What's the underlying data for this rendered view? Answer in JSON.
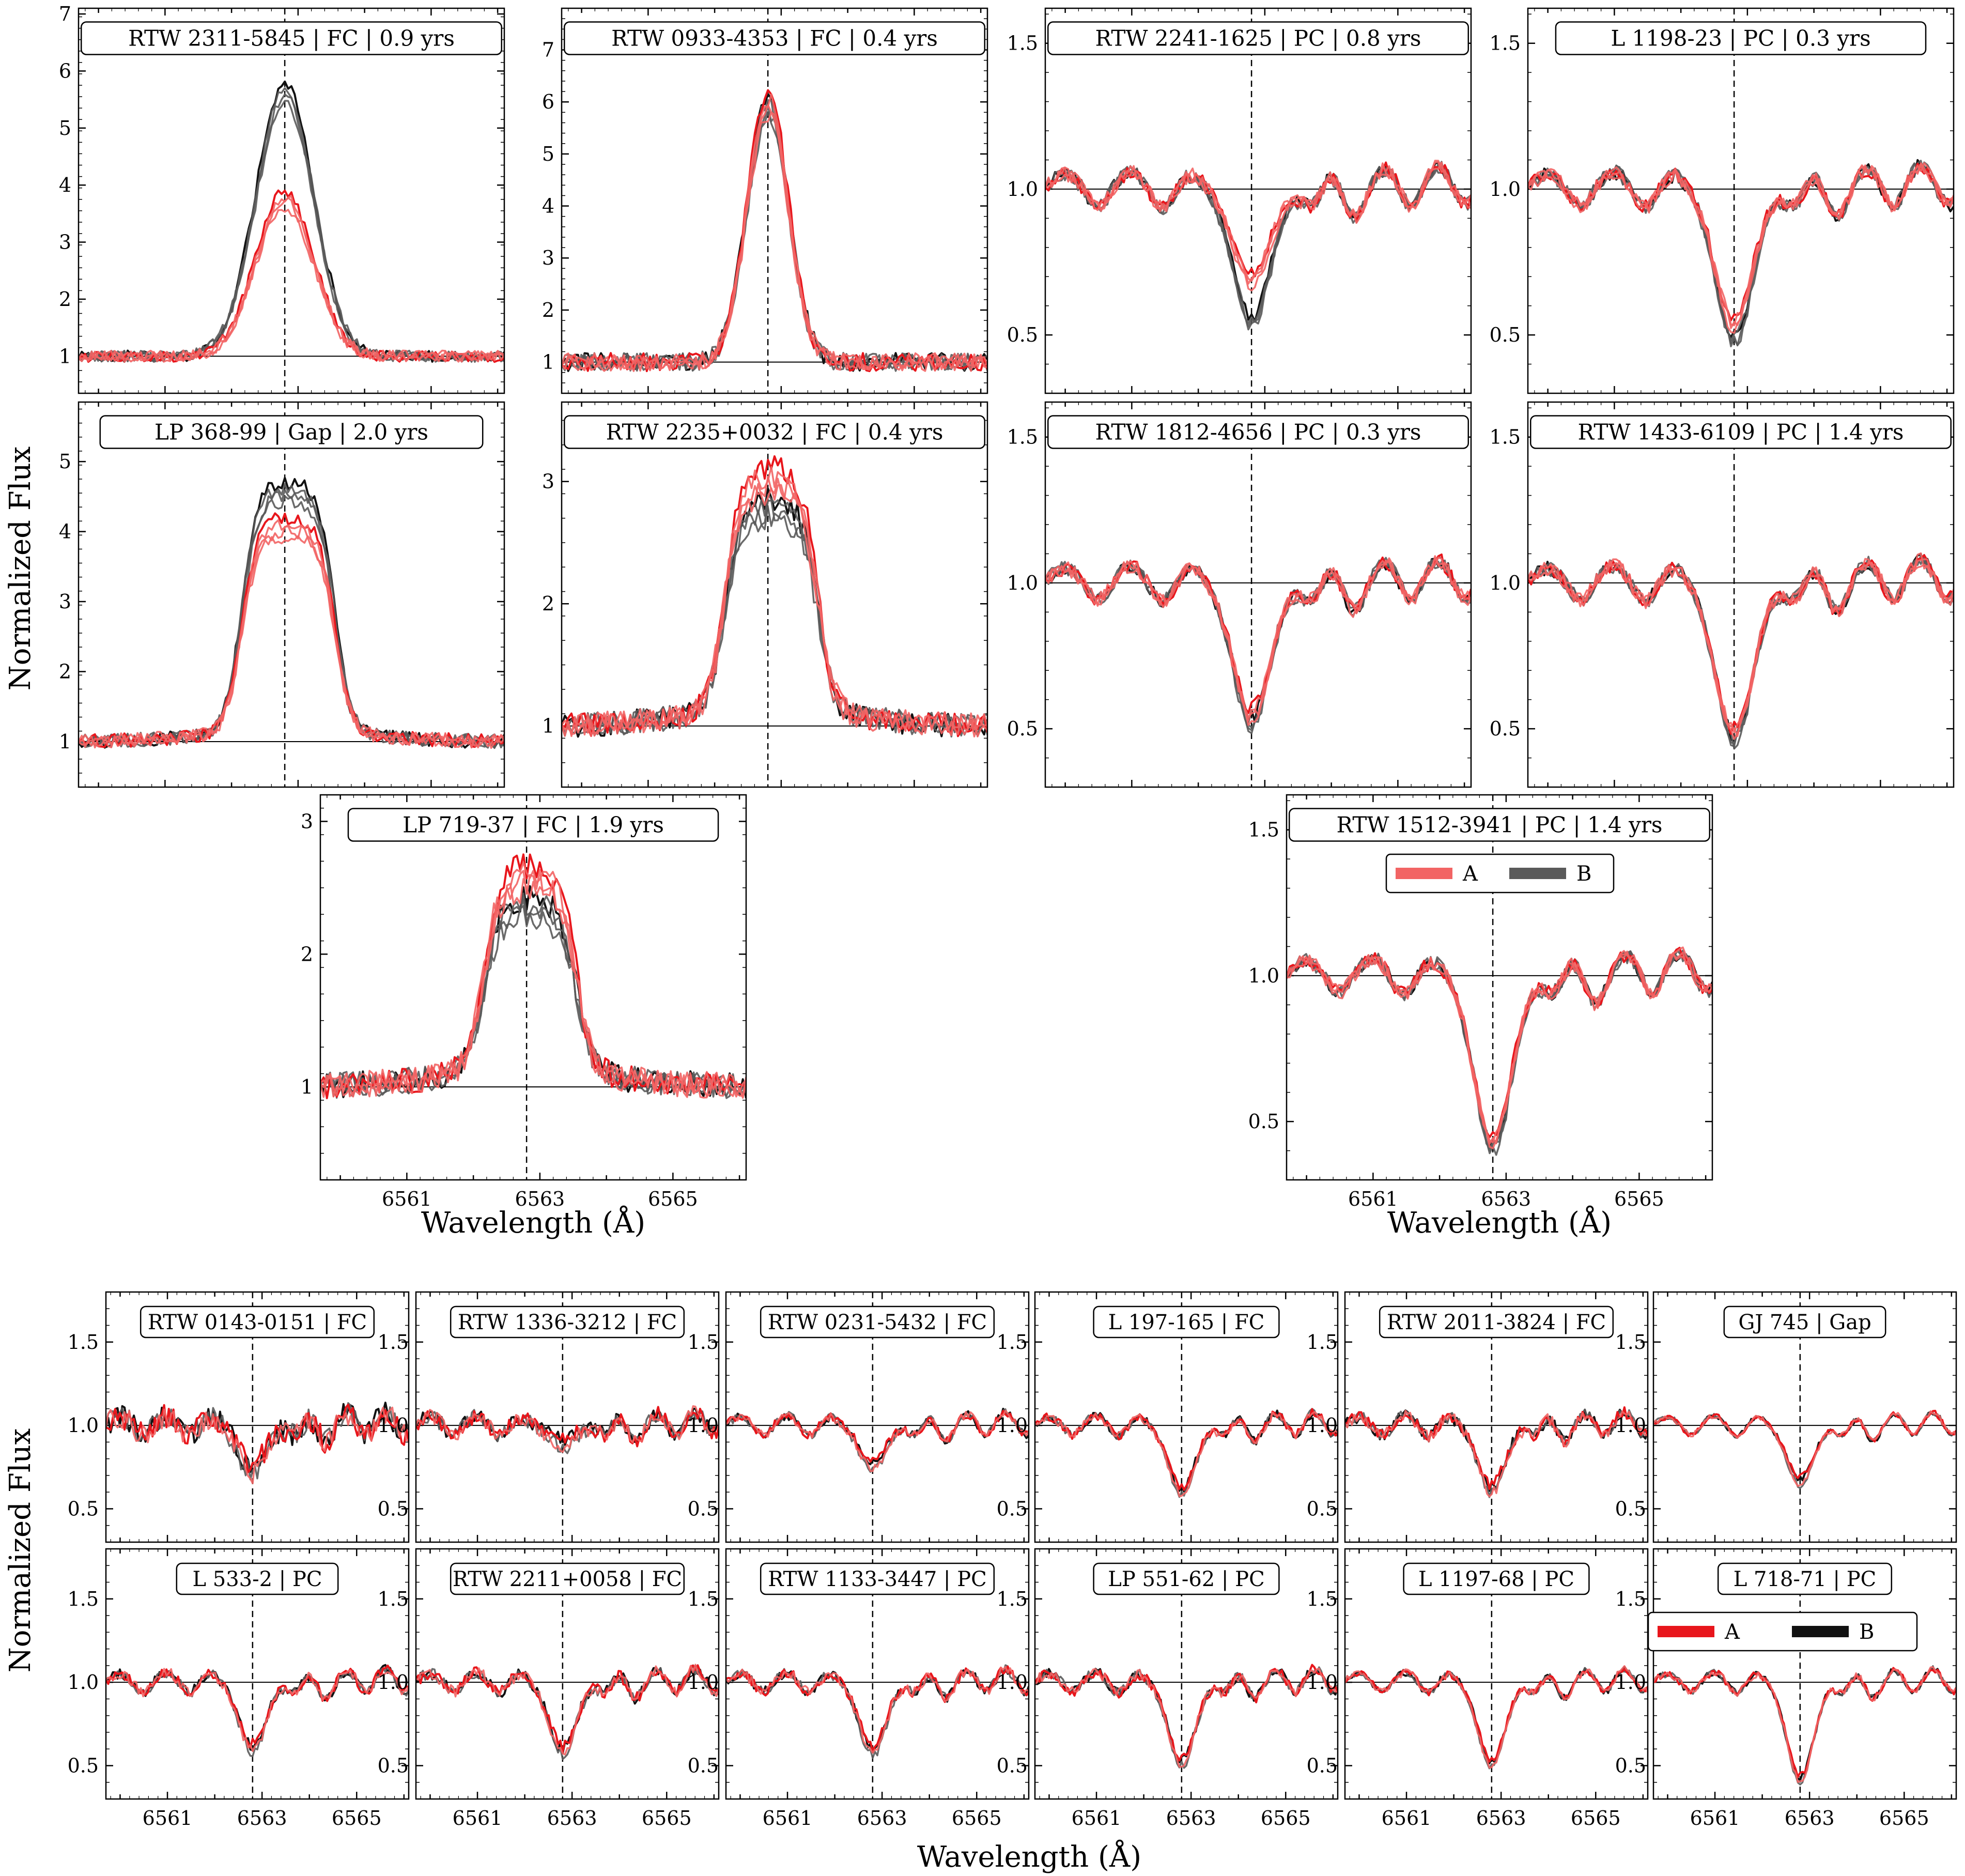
{
  "figure": {
    "ylabel": "Normalized Flux",
    "xlabel": "Wavelength (Å)"
  },
  "colors": {
    "A": "#e8161c",
    "A_light": "#f26464",
    "B": "#111111",
    "B_light": "#5a5a5a",
    "zero_line": "#000000"
  },
  "legend_top": {
    "items": [
      "A",
      "B"
    ]
  },
  "legend_bottom": {
    "items": [
      "A",
      "B"
    ]
  },
  "chart_data": {
    "type": "line",
    "description_units": {
      "x": "Angstrom",
      "y": "normalized flux"
    },
    "x_range": [
      6559.7,
      6566.1
    ],
    "x_ticks": [
      6561,
      6563,
      6565
    ],
    "halpha_center": 6562.8,
    "top_panels": [
      {
        "id": "p1",
        "label": "RTW 2311-5845  |  FC  |  0.9 yrs",
        "profile": "emission",
        "peakA": 3.9,
        "peakB": 5.8,
        "width": 0.7,
        "ylim": [
          0.35,
          7.1
        ],
        "yticks": [
          1,
          2,
          3,
          4,
          5,
          6,
          7
        ],
        "yfmt": 0
      },
      {
        "id": "p2",
        "label": "RTW 0933-4353  |  FC  |  0.4 yrs",
        "profile": "emission",
        "peakA": 6.2,
        "peakB": 6.1,
        "width": 0.5,
        "ylim": [
          0.4,
          7.8
        ],
        "yticks": [
          1,
          2,
          3,
          4,
          5,
          6,
          7
        ],
        "yfmt": 0
      },
      {
        "id": "p3",
        "label": "RTW 2241-1625  |  PC  |  0.8 yrs",
        "profile": "absorption",
        "depthA": 0.72,
        "depthB": 0.56,
        "ylim": [
          0.3,
          1.62
        ],
        "yticks": [
          0.5,
          1.0,
          1.5
        ],
        "yfmt": 1
      },
      {
        "id": "p4",
        "label": "L 1198-23  |  PC  |  0.3 yrs",
        "profile": "absorption",
        "depthA": 0.56,
        "depthB": 0.5,
        "ylim": [
          0.3,
          1.62
        ],
        "yticks": [
          0.5,
          1.0,
          1.5
        ],
        "yfmt": 1
      },
      {
        "id": "p5",
        "label": "LP 368-99  |  Gap  |  2.0 yrs",
        "profile": "flattop",
        "peakA": 4.1,
        "peakB": 4.6,
        "ylim": [
          0.35,
          5.85
        ],
        "yticks": [
          1,
          2,
          3,
          4,
          5
        ],
        "yfmt": 0
      },
      {
        "id": "p6",
        "label": "RTW 2235+0032  |  FC  |  0.4 yrs",
        "profile": "flattop",
        "peakA": 3.0,
        "peakB": 2.75,
        "ylim": [
          0.5,
          3.65
        ],
        "yticks": [
          1,
          2,
          3
        ],
        "yfmt": 0
      },
      {
        "id": "p7",
        "label": "RTW 1812-4656  |  PC  |  0.3 yrs",
        "profile": "absorption",
        "depthA": 0.57,
        "depthB": 0.54,
        "ylim": [
          0.3,
          1.62
        ],
        "yticks": [
          0.5,
          1.0,
          1.5
        ],
        "yfmt": 1
      },
      {
        "id": "p8",
        "label": "RTW 1433-6109  |  PC  |  1.4 yrs",
        "profile": "absorption",
        "depthA": 0.5,
        "depthB": 0.48,
        "ylim": [
          0.3,
          1.62
        ],
        "yticks": [
          0.5,
          1.0,
          1.5
        ],
        "yfmt": 1
      },
      {
        "id": "p9",
        "label": "LP 719-37  |  FC  |  1.9 yrs",
        "profile": "flattop",
        "peakA": 2.55,
        "peakB": 2.3,
        "ylim": [
          0.3,
          3.2
        ],
        "yticks": [
          1,
          2,
          3
        ],
        "yfmt": 0
      },
      {
        "id": "p10",
        "label": "RTW 1512-3941  |  PC  |  1.4 yrs",
        "profile": "absorption",
        "depthA": 0.45,
        "depthB": 0.42,
        "ylim": [
          0.3,
          1.62
        ],
        "yticks": [
          0.5,
          1.0,
          1.5
        ],
        "yfmt": 1
      }
    ],
    "bottom_panels": [
      {
        "id": "q1",
        "label": "RTW 0143-0151 | FC",
        "depth": 0.75,
        "noise": 0.14
      },
      {
        "id": "q2",
        "label": "RTW 1336-3212 | FC",
        "depth": 0.92,
        "noise": 0.09
      },
      {
        "id": "q3",
        "label": "RTW 0231-5432 | FC",
        "depth": 0.78,
        "noise": 0.05
      },
      {
        "id": "q4",
        "label": "L 197-165 | FC",
        "depth": 0.62,
        "noise": 0.05
      },
      {
        "id": "q5",
        "label": "RTW 2011-3824 | FC",
        "depth": 0.63,
        "noise": 0.07
      },
      {
        "id": "q6",
        "label": "GJ 745 | Gap",
        "depth": 0.68,
        "noise": 0.03
      },
      {
        "id": "q7",
        "label": "L 533-2 | PC",
        "depth": 0.62,
        "noise": 0.06
      },
      {
        "id": "q8",
        "label": "RTW 2211+0058 | FC",
        "depth": 0.6,
        "noise": 0.07
      },
      {
        "id": "q9",
        "label": "RTW 1133-3447 | PC",
        "depth": 0.6,
        "noise": 0.06
      },
      {
        "id": "q10",
        "label": "LP 551-62 | PC",
        "depth": 0.53,
        "noise": 0.06
      },
      {
        "id": "q11",
        "label": "L 1197-68 | PC",
        "depth": 0.52,
        "noise": 0.04
      },
      {
        "id": "q12",
        "label": "L 718-71 | PC",
        "depth": 0.43,
        "noise": 0.04
      }
    ],
    "bottom_ylim": [
      0.3,
      1.8
    ],
    "bottom_yticks": [
      0.5,
      1.0,
      1.5
    ]
  }
}
